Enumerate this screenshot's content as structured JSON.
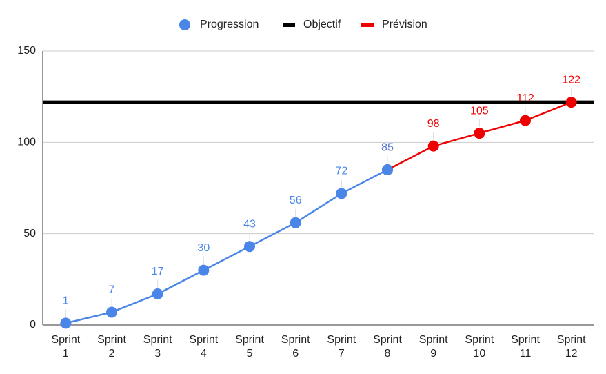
{
  "chart_data": {
    "type": "line",
    "categories": [
      "Sprint 1",
      "Sprint 2",
      "Sprint 3",
      "Sprint 4",
      "Sprint 5",
      "Sprint 6",
      "Sprint 7",
      "Sprint 8",
      "Sprint 9",
      "Sprint 10",
      "Sprint 11",
      "Sprint 12"
    ],
    "series": [
      {
        "name": "Progression",
        "color": "#4a86e8",
        "values": [
          1,
          7,
          17,
          30,
          43,
          56,
          72,
          85,
          null,
          null,
          null,
          null
        ]
      },
      {
        "name": "Objectif",
        "color": "#000000",
        "value": 122
      },
      {
        "name": "Prévision",
        "color": "#ee0000",
        "values": [
          null,
          null,
          null,
          null,
          null,
          null,
          null,
          85,
          98,
          105,
          112,
          122
        ]
      }
    ],
    "ylim": [
      0,
      150
    ],
    "yticks": [
      0,
      50,
      100,
      150
    ],
    "grid": true,
    "legend": "top"
  }
}
